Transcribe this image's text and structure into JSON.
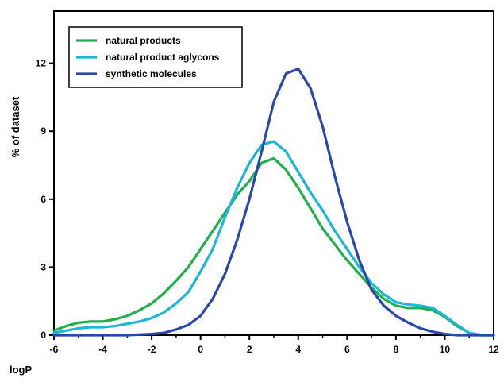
{
  "chart_data": {
    "type": "line",
    "title": "",
    "xlabel": "logP",
    "ylabel": "% of dataset",
    "xlim": [
      -6,
      12
    ],
    "ylim": [
      0,
      14.3
    ],
    "xticks": [
      -6,
      -4,
      -2,
      0,
      2,
      4,
      6,
      8,
      10,
      12
    ],
    "yticks": [
      0,
      3,
      6,
      9,
      12
    ],
    "grid": false,
    "legend": "top-left",
    "series": [
      {
        "name": "natural products",
        "color": "#1db04b",
        "points": [
          [
            -6,
            0.2
          ],
          [
            -5.5,
            0.4
          ],
          [
            -5,
            0.55
          ],
          [
            -4.5,
            0.6
          ],
          [
            -4,
            0.6
          ],
          [
            -3.5,
            0.7
          ],
          [
            -3,
            0.85
          ],
          [
            -2.5,
            1.1
          ],
          [
            -2,
            1.4
          ],
          [
            -1.5,
            1.85
          ],
          [
            -1,
            2.4
          ],
          [
            -0.5,
            3.0
          ],
          [
            0,
            3.8
          ],
          [
            0.5,
            4.6
          ],
          [
            1,
            5.4
          ],
          [
            1.5,
            6.2
          ],
          [
            2,
            6.8
          ],
          [
            2.5,
            7.6
          ],
          [
            3,
            7.8
          ],
          [
            3.5,
            7.3
          ],
          [
            4,
            6.5
          ],
          [
            4.5,
            5.6
          ],
          [
            5,
            4.7
          ],
          [
            5.5,
            4.0
          ],
          [
            6,
            3.3
          ],
          [
            6.5,
            2.7
          ],
          [
            7,
            2.1
          ],
          [
            7.5,
            1.6
          ],
          [
            8,
            1.3
          ],
          [
            8.5,
            1.2
          ],
          [
            9,
            1.2
          ],
          [
            9.5,
            1.1
          ],
          [
            10,
            0.8
          ],
          [
            10.5,
            0.4
          ],
          [
            11,
            0.1
          ],
          [
            11.5,
            0.0
          ],
          [
            12,
            0.0
          ]
        ]
      },
      {
        "name": "natural product aglycons",
        "color": "#19b8d6",
        "points": [
          [
            -6,
            0.1
          ],
          [
            -5.5,
            0.2
          ],
          [
            -5,
            0.3
          ],
          [
            -4.5,
            0.35
          ],
          [
            -4,
            0.35
          ],
          [
            -3.5,
            0.4
          ],
          [
            -3,
            0.5
          ],
          [
            -2.5,
            0.6
          ],
          [
            -2,
            0.75
          ],
          [
            -1.5,
            1.0
          ],
          [
            -1,
            1.4
          ],
          [
            -0.5,
            1.9
          ],
          [
            0,
            2.8
          ],
          [
            0.5,
            3.8
          ],
          [
            1,
            5.2
          ],
          [
            1.5,
            6.5
          ],
          [
            2,
            7.6
          ],
          [
            2.5,
            8.4
          ],
          [
            3,
            8.55
          ],
          [
            3.5,
            8.1
          ],
          [
            4,
            7.2
          ],
          [
            4.5,
            6.3
          ],
          [
            5,
            5.5
          ],
          [
            5.5,
            4.6
          ],
          [
            6,
            3.8
          ],
          [
            6.5,
            3.0
          ],
          [
            7,
            2.3
          ],
          [
            7.5,
            1.8
          ],
          [
            8,
            1.45
          ],
          [
            8.5,
            1.35
          ],
          [
            9,
            1.3
          ],
          [
            9.5,
            1.2
          ],
          [
            10,
            0.85
          ],
          [
            10.5,
            0.45
          ],
          [
            11,
            0.1
          ],
          [
            11.5,
            0.0
          ],
          [
            12,
            0.0
          ]
        ]
      },
      {
        "name": "synthetic molecules",
        "color": "#2b48a8",
        "points": [
          [
            -6,
            0.0
          ],
          [
            -5,
            0.0
          ],
          [
            -4,
            0.0
          ],
          [
            -3,
            0.0
          ],
          [
            -2,
            0.05
          ],
          [
            -1.5,
            0.1
          ],
          [
            -1,
            0.25
          ],
          [
            -0.5,
            0.45
          ],
          [
            0,
            0.85
          ],
          [
            0.5,
            1.6
          ],
          [
            1,
            2.7
          ],
          [
            1.5,
            4.2
          ],
          [
            2,
            6.0
          ],
          [
            2.5,
            8.1
          ],
          [
            3,
            10.3
          ],
          [
            3.5,
            11.55
          ],
          [
            4,
            11.75
          ],
          [
            4.5,
            10.9
          ],
          [
            5,
            9.2
          ],
          [
            5.5,
            7.0
          ],
          [
            6,
            5.0
          ],
          [
            6.5,
            3.3
          ],
          [
            7,
            2.0
          ],
          [
            7.5,
            1.3
          ],
          [
            8,
            0.85
          ],
          [
            8.5,
            0.55
          ],
          [
            9,
            0.3
          ],
          [
            9.5,
            0.15
          ],
          [
            10,
            0.05
          ],
          [
            10.5,
            0.0
          ],
          [
            11,
            0.0
          ],
          [
            12,
            0.0
          ]
        ]
      }
    ]
  }
}
